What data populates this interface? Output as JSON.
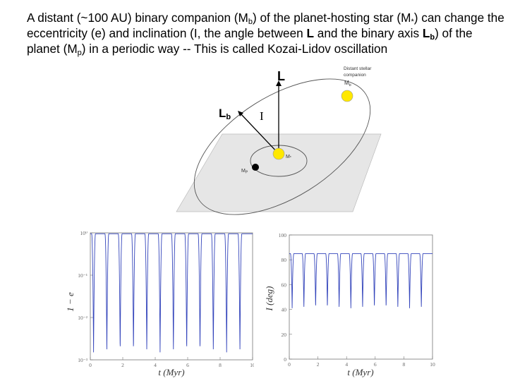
{
  "caption": {
    "s1": "A distant (~100 AU) binary companion (M",
    "s1sub": "b",
    "s2": ") of the planet-hosting star (M",
    "s2sub": "*",
    "s3": ") can change the eccentricity (e) and inclination (I, the angle between ",
    "bold_L": "L",
    "s4": " and the binary axis ",
    "bold_Lb": "L",
    "bold_Lb_sub": "b",
    "s5": ") of the planet (M",
    "s5sub": "p",
    "s6": ") in a periodic way -- This is called Kozai-Lidov oscillation"
  },
  "diagram": {
    "label_L": "L",
    "label_Lb": "L",
    "label_Lb_sub": "b",
    "label_I": "I",
    "companion_line1": "Distant stellar",
    "companion_line2": "companion",
    "companion_line3": "M",
    "companion_sub": "b",
    "star_label": "M",
    "star_sub": "*",
    "planet_label": "M",
    "planet_sub": "P",
    "colors": {
      "star": "#ffe800",
      "plane": "#e6e6e6",
      "planet": "#000000"
    }
  },
  "chart_data": [
    {
      "type": "line",
      "xlabel": "t (Myr)",
      "ylabel": "1 − e",
      "xlim": [
        0,
        10
      ],
      "ylim": [
        0.001,
        1
      ],
      "yscale": "log",
      "xticks": [
        "0",
        "2",
        "4",
        "6",
        "8",
        "10"
      ],
      "yticks": [
        "10⁰",
        "10⁻¹",
        "10⁻²",
        "10⁻³"
      ],
      "oscillation_period": 0.82,
      "dip_centers": [
        0.2,
        1.02,
        1.84,
        2.66,
        3.48,
        4.3,
        5.12,
        5.94,
        6.76,
        7.58,
        8.4,
        9.22
      ],
      "baseline": 0.95,
      "minimum": 0.0015,
      "color": "#3344bb"
    },
    {
      "type": "line",
      "xlabel": "t (Myr)",
      "ylabel": "I (deg)",
      "xlim": [
        0,
        10
      ],
      "ylim": [
        0,
        100
      ],
      "xticks": [
        "0",
        "2",
        "4",
        "6",
        "8",
        "10"
      ],
      "yticks": [
        "0",
        "20",
        "40",
        "60",
        "80",
        "100"
      ],
      "oscillation_period": 0.82,
      "dip_centers": [
        0.2,
        1.02,
        1.84,
        2.66,
        3.48,
        4.3,
        5.12,
        5.94,
        6.76,
        7.58,
        8.4,
        9.22
      ],
      "baseline": 85,
      "minimum": 41,
      "color": "#3344bb"
    }
  ]
}
